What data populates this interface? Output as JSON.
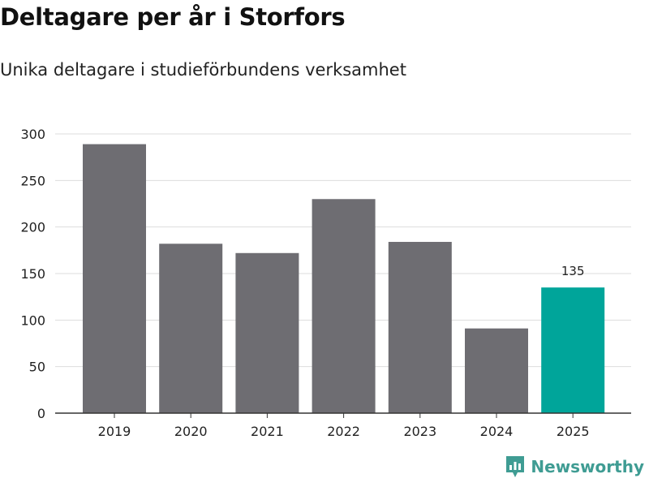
{
  "chart_data": {
    "type": "bar",
    "title": "Deltagare per år i Storfors",
    "subtitle": "Unika deltagare i studieförbundens verksamhet",
    "categories": [
      "2019",
      "2020",
      "2021",
      "2022",
      "2023",
      "2024",
      "2025"
    ],
    "values": [
      289,
      182,
      172,
      230,
      184,
      91,
      135
    ],
    "highlight_index": 6,
    "highlight_label": "135",
    "ylim": [
      0,
      300
    ],
    "yticks": [
      "0",
      "50",
      "100",
      "150",
      "200",
      "250",
      "300"
    ],
    "xlabel": "",
    "ylabel": "",
    "grid": true,
    "colors": {
      "bar": "#6e6d72",
      "highlight": "#00a59a",
      "grid": "#dddddd",
      "axis": "#333333"
    }
  },
  "brand": {
    "name": "Newsworthy",
    "color": "#3f9c93"
  }
}
